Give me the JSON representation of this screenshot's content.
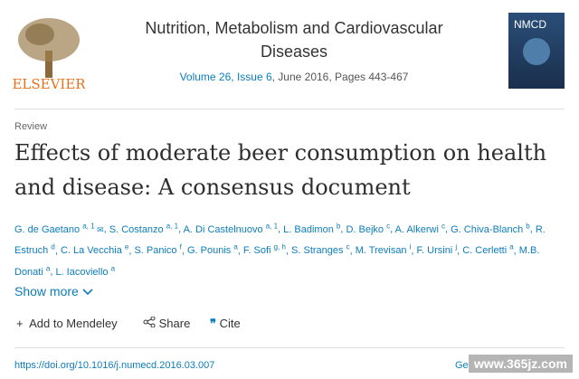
{
  "publisher": "ELSEVIER",
  "journal": {
    "title_line1": "Nutrition, Metabolism and Cardiovascular",
    "title_line2": "Diseases",
    "volume": "Volume 26, Issue 6",
    "details": ", June 2016, Pages 443-467",
    "cover_label": "NMCD"
  },
  "article": {
    "type": "Review",
    "title_line1": "Effects of moderate beer consumption on health",
    "title_line2": "and disease: A consensus document",
    "authors": [
      {
        "name": "G. de Gaetano",
        "sup": "a, 1"
      },
      {
        "name": "S. Costanzo",
        "sup": "a, 1"
      },
      {
        "name": "A. Di Castelnuovo",
        "sup": "a, 1"
      },
      {
        "name": "L. Badimon",
        "sup": "b"
      },
      {
        "name": "D. Bejko",
        "sup": "c"
      },
      {
        "name": "A. Alkerwi",
        "sup": "c"
      },
      {
        "name": "G. Chiva-Blanch",
        "sup": "b"
      },
      {
        "name": "R. Estruch",
        "sup": "d"
      },
      {
        "name": "C. La Vecchia",
        "sup": "e"
      },
      {
        "name": "S. Panico",
        "sup": "f"
      },
      {
        "name": "G. Pounis",
        "sup": "a"
      },
      {
        "name": "F. Sofi",
        "sup": "g, h"
      },
      {
        "name": "S. Stranges",
        "sup": "c"
      },
      {
        "name": "M. Trevisan",
        "sup": "i"
      },
      {
        "name": "F. Ursini",
        "sup": "j"
      },
      {
        "name": "C. Cerletti",
        "sup": "a"
      },
      {
        "name": "M.B. Donati",
        "sup": "a"
      },
      {
        "name": "L. Iacoviello",
        "sup": "a"
      }
    ],
    "show_more": "Show more",
    "actions": [
      "Add to Mendeley",
      "Share",
      "Cite"
    ],
    "doi": "https://doi.org/10.1016/j.numecd.2016.03.007",
    "partial_link": "Ge"
  },
  "watermark": "www.365jz.com"
}
